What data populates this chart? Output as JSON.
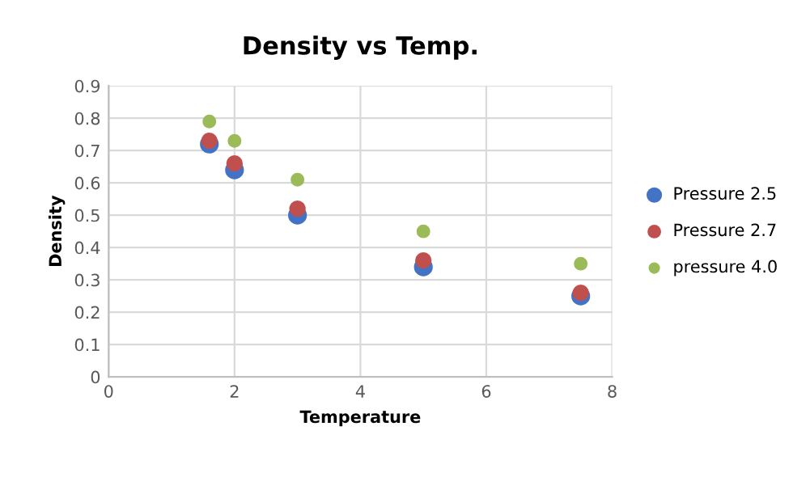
{
  "chart_data": {
    "type": "scatter",
    "title": "Density vs Temp.",
    "xlabel": "Temperature",
    "ylabel": "Density",
    "x": [
      1.6,
      2,
      3,
      5,
      7.5
    ],
    "series": [
      {
        "name": "Pressure 2.5",
        "color": "#4472c4",
        "values": [
          0.72,
          0.64,
          0.5,
          0.34,
          0.25
        ]
      },
      {
        "name": "Pressure 2.7",
        "color": "#c0504d",
        "values": [
          0.73,
          0.66,
          0.52,
          0.36,
          0.26
        ]
      },
      {
        "name": "pressure 4.0",
        "color": "#9bbb59",
        "values": [
          0.79,
          0.73,
          0.61,
          0.45,
          0.35
        ]
      }
    ],
    "xlim": [
      0,
      8
    ],
    "xticks": [
      0,
      2,
      4,
      6,
      8
    ],
    "ylim": [
      0,
      0.9
    ],
    "yticks": [
      0,
      0.1,
      0.2,
      0.3,
      0.4,
      0.5,
      0.6,
      0.7,
      0.8,
      0.9
    ],
    "grid": true,
    "legend": "right",
    "marker": "circle"
  }
}
